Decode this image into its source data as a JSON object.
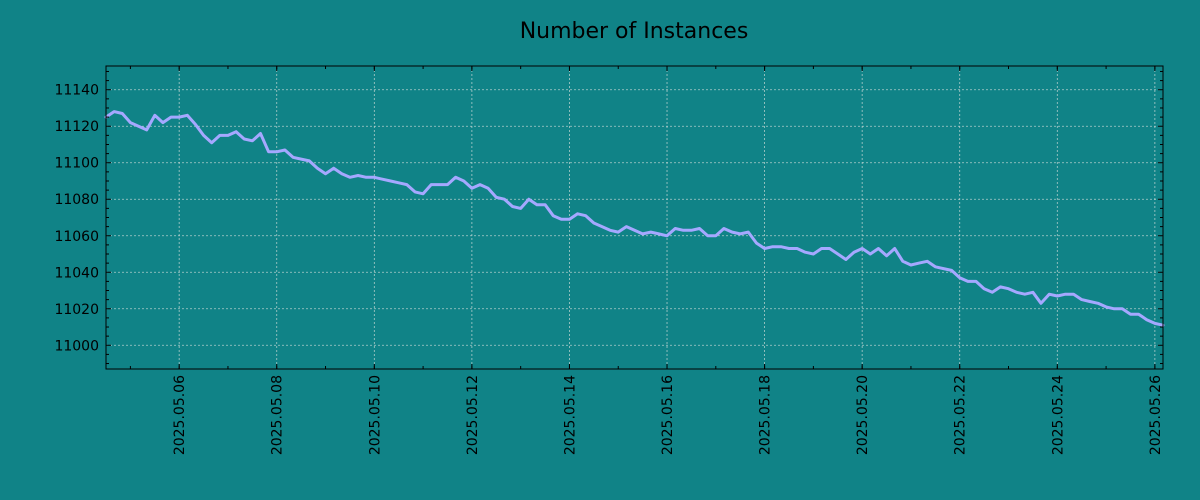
{
  "chart_data": {
    "type": "line",
    "title": "Number of Instances",
    "xlabel": "",
    "ylabel": "",
    "grid": true,
    "x_tick_labels": [
      "2025.05.06",
      "2025.05.08",
      "2025.05.10",
      "2025.05.12",
      "2025.05.14",
      "2025.05.16",
      "2025.05.18",
      "2025.05.20",
      "2025.05.22",
      "2025.05.24",
      "2025.05.26"
    ],
    "y_tick_labels": [
      "11000",
      "11020",
      "11040",
      "11060",
      "11080",
      "11100",
      "11120",
      "11140"
    ],
    "xlim": [
      "2025-05-04T12:00",
      "2025-05-26T04:00"
    ],
    "ylim": [
      10987,
      11153
    ],
    "colors": {
      "background": "#108387",
      "line": "#a5a8ff"
    },
    "series": [
      {
        "x": [
          "2025-05-04T12:00",
          "2025-05-04T16:00",
          "2025-05-04T20:00",
          "2025-05-05T00:00",
          "2025-05-05T04:00",
          "2025-05-05T08:00",
          "2025-05-05T12:00",
          "2025-05-05T16:00",
          "2025-05-05T20:00",
          "2025-05-06T00:00",
          "2025-05-06T04:00",
          "2025-05-06T08:00",
          "2025-05-06T12:00",
          "2025-05-06T16:00",
          "2025-05-06T20:00",
          "2025-05-07T00:00",
          "2025-05-07T04:00",
          "2025-05-07T08:00",
          "2025-05-07T12:00",
          "2025-05-07T16:00",
          "2025-05-07T20:00",
          "2025-05-08T00:00",
          "2025-05-08T04:00",
          "2025-05-08T08:00",
          "2025-05-08T12:00",
          "2025-05-08T16:00",
          "2025-05-08T20:00",
          "2025-05-09T00:00",
          "2025-05-09T04:00",
          "2025-05-09T08:00",
          "2025-05-09T12:00",
          "2025-05-09T16:00",
          "2025-05-09T20:00",
          "2025-05-10T00:00",
          "2025-05-10T04:00",
          "2025-05-10T08:00",
          "2025-05-10T12:00",
          "2025-05-10T16:00",
          "2025-05-10T20:00",
          "2025-05-11T00:00",
          "2025-05-11T04:00",
          "2025-05-11T08:00",
          "2025-05-11T12:00",
          "2025-05-11T16:00",
          "2025-05-11T20:00",
          "2025-05-12T00:00",
          "2025-05-12T04:00",
          "2025-05-12T08:00",
          "2025-05-12T12:00",
          "2025-05-12T16:00",
          "2025-05-12T20:00",
          "2025-05-13T00:00",
          "2025-05-13T04:00",
          "2025-05-13T08:00",
          "2025-05-13T12:00",
          "2025-05-13T16:00",
          "2025-05-13T20:00",
          "2025-05-14T00:00",
          "2025-05-14T04:00",
          "2025-05-14T08:00",
          "2025-05-14T12:00",
          "2025-05-14T16:00",
          "2025-05-14T20:00",
          "2025-05-15T00:00",
          "2025-05-15T04:00",
          "2025-05-15T08:00",
          "2025-05-15T12:00",
          "2025-05-15T16:00",
          "2025-05-15T20:00",
          "2025-05-16T00:00",
          "2025-05-16T04:00",
          "2025-05-16T08:00",
          "2025-05-16T12:00",
          "2025-05-16T16:00",
          "2025-05-16T20:00",
          "2025-05-17T00:00",
          "2025-05-17T04:00",
          "2025-05-17T08:00",
          "2025-05-17T12:00",
          "2025-05-17T16:00",
          "2025-05-17T20:00",
          "2025-05-18T00:00",
          "2025-05-18T04:00",
          "2025-05-18T08:00",
          "2025-05-18T12:00",
          "2025-05-18T16:00",
          "2025-05-18T20:00",
          "2025-05-19T00:00",
          "2025-05-19T04:00",
          "2025-05-19T08:00",
          "2025-05-19T12:00",
          "2025-05-19T16:00",
          "2025-05-19T20:00",
          "2025-05-20T00:00",
          "2025-05-20T04:00",
          "2025-05-20T08:00",
          "2025-05-20T12:00",
          "2025-05-20T16:00",
          "2025-05-20T20:00",
          "2025-05-21T00:00",
          "2025-05-21T04:00",
          "2025-05-21T08:00",
          "2025-05-21T12:00",
          "2025-05-21T16:00",
          "2025-05-21T20:00",
          "2025-05-22T00:00",
          "2025-05-22T04:00",
          "2025-05-22T08:00",
          "2025-05-22T12:00",
          "2025-05-22T16:00",
          "2025-05-22T20:00",
          "2025-05-23T00:00",
          "2025-05-23T04:00",
          "2025-05-23T08:00",
          "2025-05-23T12:00",
          "2025-05-23T16:00",
          "2025-05-23T20:00",
          "2025-05-24T00:00",
          "2025-05-24T04:00",
          "2025-05-24T08:00",
          "2025-05-24T12:00",
          "2025-05-24T16:00",
          "2025-05-24T20:00",
          "2025-05-25T00:00",
          "2025-05-25T04:00",
          "2025-05-25T08:00",
          "2025-05-25T12:00",
          "2025-05-25T16:00",
          "2025-05-25T20:00",
          "2025-05-26T00:00",
          "2025-05-26T04:00"
        ],
        "y": [
          11125,
          11128,
          11127,
          11122,
          11120,
          11118,
          11126,
          11122,
          11125,
          11125,
          11126,
          11121,
          11115,
          11111,
          11115,
          11115,
          11117,
          11113,
          11112,
          11116,
          11106,
          11106,
          11107,
          11103,
          11102,
          11101,
          11097,
          11094,
          11097,
          11094,
          11092,
          11093,
          11092,
          11092,
          11091,
          11090,
          11089,
          11088,
          11084,
          11083,
          11088,
          11088,
          11088,
          11092,
          11090,
          11086,
          11088,
          11086,
          11081,
          11080,
          11076,
          11075,
          11080,
          11077,
          11077,
          11071,
          11069,
          11069,
          11072,
          11071,
          11067,
          11065,
          11063,
          11062,
          11065,
          11063,
          11061,
          11062,
          11061,
          11060,
          11064,
          11063,
          11063,
          11064,
          11060,
          11060,
          11064,
          11062,
          11061,
          11062,
          11056,
          11053,
          11054,
          11054,
          11053,
          11053,
          11051,
          11050,
          11053,
          11053,
          11050,
          11047,
          11051,
          11053,
          11050,
          11053,
          11049,
          11053,
          11046,
          11044,
          11045,
          11046,
          11043,
          11042,
          11041,
          11037,
          11035,
          11035,
          11031,
          11029,
          11032,
          11031,
          11029,
          11028,
          11029,
          11023,
          11028,
          11027,
          11028,
          11028,
          11025,
          11024,
          11023,
          11021,
          11020,
          11020,
          11017,
          11017,
          11014,
          11012,
          11011
        ]
      }
    ]
  }
}
